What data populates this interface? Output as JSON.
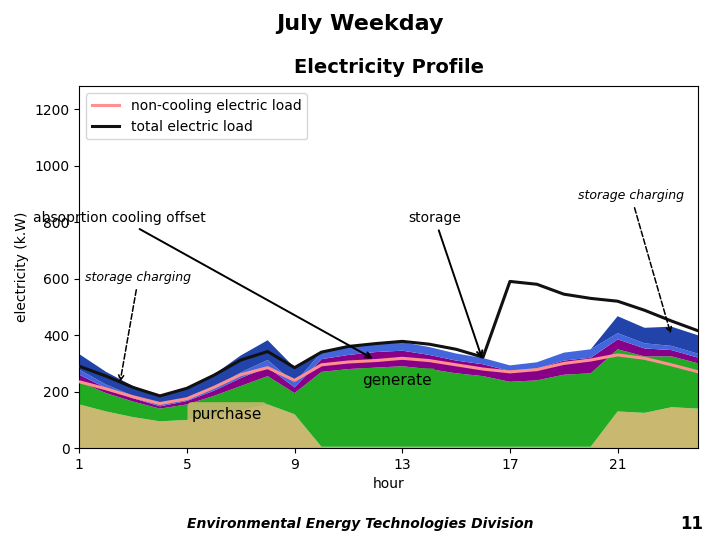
{
  "chart_data": {
    "type": "area",
    "stacked": true,
    "title": "July Weekday",
    "subtitle": "Electricity Profile",
    "x_label": "hour",
    "y_label": "electricity (k.W)",
    "x": [
      1,
      2,
      3,
      4,
      5,
      6,
      7,
      8,
      9,
      10,
      11,
      12,
      13,
      14,
      15,
      16,
      17,
      18,
      19,
      20,
      21,
      22,
      23,
      24
    ],
    "xlim": [
      1,
      24
    ],
    "xticks": [
      1,
      5,
      9,
      13,
      17,
      21
    ],
    "ylim": [
      0,
      1280
    ],
    "yticks": [
      0,
      200,
      400,
      600,
      800,
      1000,
      1200
    ],
    "legend": "upper left",
    "series": [
      {
        "name": "purchase",
        "type": "area",
        "color": "#c8b870",
        "values": [
          155,
          130,
          110,
          95,
          100,
          115,
          135,
          155,
          120,
          5,
          5,
          5,
          5,
          5,
          5,
          5,
          5,
          5,
          5,
          5,
          130,
          125,
          145,
          140
        ]
      },
      {
        "name": "generate",
        "type": "area",
        "color": "#22aa22",
        "values": [
          80,
          65,
          55,
          45,
          55,
          70,
          85,
          100,
          75,
          265,
          275,
          280,
          285,
          275,
          260,
          250,
          230,
          235,
          255,
          260,
          220,
          200,
          180,
          160
        ]
      },
      {
        "name": "absoprtion cooling offset",
        "type": "area",
        "color": "#880088",
        "values": [
          25,
          18,
          12,
          8,
          12,
          18,
          28,
          32,
          20,
          45,
          50,
          55,
          55,
          50,
          45,
          42,
          38,
          42,
          50,
          55,
          35,
          28,
          22,
          20
        ]
      },
      {
        "name": "storage",
        "type": "area",
        "color": "#4466dd",
        "values": [
          18,
          12,
          8,
          6,
          8,
          12,
          20,
          25,
          15,
          25,
          28,
          30,
          30,
          28,
          25,
          22,
          20,
          22,
          28,
          30,
          22,
          18,
          15,
          14
        ]
      },
      {
        "name": "storage charging",
        "type": "area",
        "color": "#2244aa",
        "values": [
          55,
          45,
          35,
          28,
          35,
          45,
          60,
          70,
          55,
          0,
          0,
          0,
          0,
          0,
          0,
          0,
          0,
          0,
          0,
          0,
          60,
          55,
          68,
          65
        ]
      },
      {
        "name": "non-cooling electric load",
        "type": "line",
        "color": "#ff9090",
        "values": [
          235,
          210,
          182,
          158,
          175,
          215,
          260,
          285,
          240,
          295,
          305,
          310,
          318,
          310,
          295,
          280,
          270,
          278,
          300,
          312,
          330,
          318,
          295,
          270
        ]
      },
      {
        "name": "total electric load",
        "type": "line",
        "color": "#111111",
        "values": [
          290,
          255,
          215,
          185,
          212,
          258,
          312,
          342,
          285,
          340,
          360,
          370,
          378,
          368,
          350,
          322,
          590,
          580,
          545,
          530,
          520,
          488,
          450,
          415
        ]
      }
    ],
    "annotations": [
      "Environmental Energy Technologies Division",
      "11"
    ]
  }
}
